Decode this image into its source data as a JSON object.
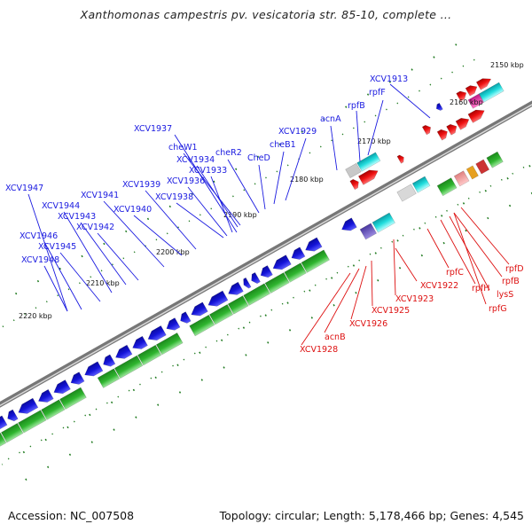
{
  "title": "Xanthomonas campestris pv. vesicatoria str. 85-10, complete ...",
  "footer": {
    "accession": "Accession: NC_007508",
    "summary": "Topology: circular; Length: 5,178,466 bp; Genes: 4,545"
  },
  "colors": {
    "forward_gene": "#2aa52a",
    "reverse_gene": "#1414d8",
    "rna_gene": "#ee1111",
    "backbone": "#888888",
    "tick": "#1f7a1f",
    "forward_label": "#1a1ae0",
    "reverse_label": "#dd1010"
  },
  "scale_labels": [
    {
      "text": "2150 kbp",
      "pos": 0.0
    },
    {
      "text": "2160 kbp",
      "pos": 10.0
    },
    {
      "text": "2170 kbp",
      "pos": 20.0
    },
    {
      "text": "2180 kbp",
      "pos": 30.0
    },
    {
      "text": "2190 kbp",
      "pos": 40.0
    },
    {
      "text": "2200 kbp",
      "pos": 50.0
    },
    {
      "text": "2210 kbp",
      "pos": 60.0
    },
    {
      "text": "2220 kbp",
      "pos": 70.0
    }
  ],
  "upper_labels": [
    "XCV1913",
    "rpfB",
    "rpfF",
    "acnA",
    "XCV1929",
    "cheB1",
    "CheD",
    "cheR2",
    "cheW1",
    "XCV1937",
    "XCV1934",
    "XCV1933",
    "XCV1936",
    "XCV1938",
    "XCV1939",
    "XCV1940",
    "XCV1941",
    "XCV1942",
    "XCV1943",
    "XCV1944",
    "XCV1945",
    "XCV1946",
    "XCV1947",
    "XCV1948"
  ],
  "lower_labels": [
    "rpfD",
    "rpfB",
    "rpfC",
    "rpfH",
    "lysS",
    "rpfG",
    "XCV1922",
    "XCV1923",
    "XCV1925",
    "XCV1926",
    "acnB",
    "XCV1928"
  ]
}
